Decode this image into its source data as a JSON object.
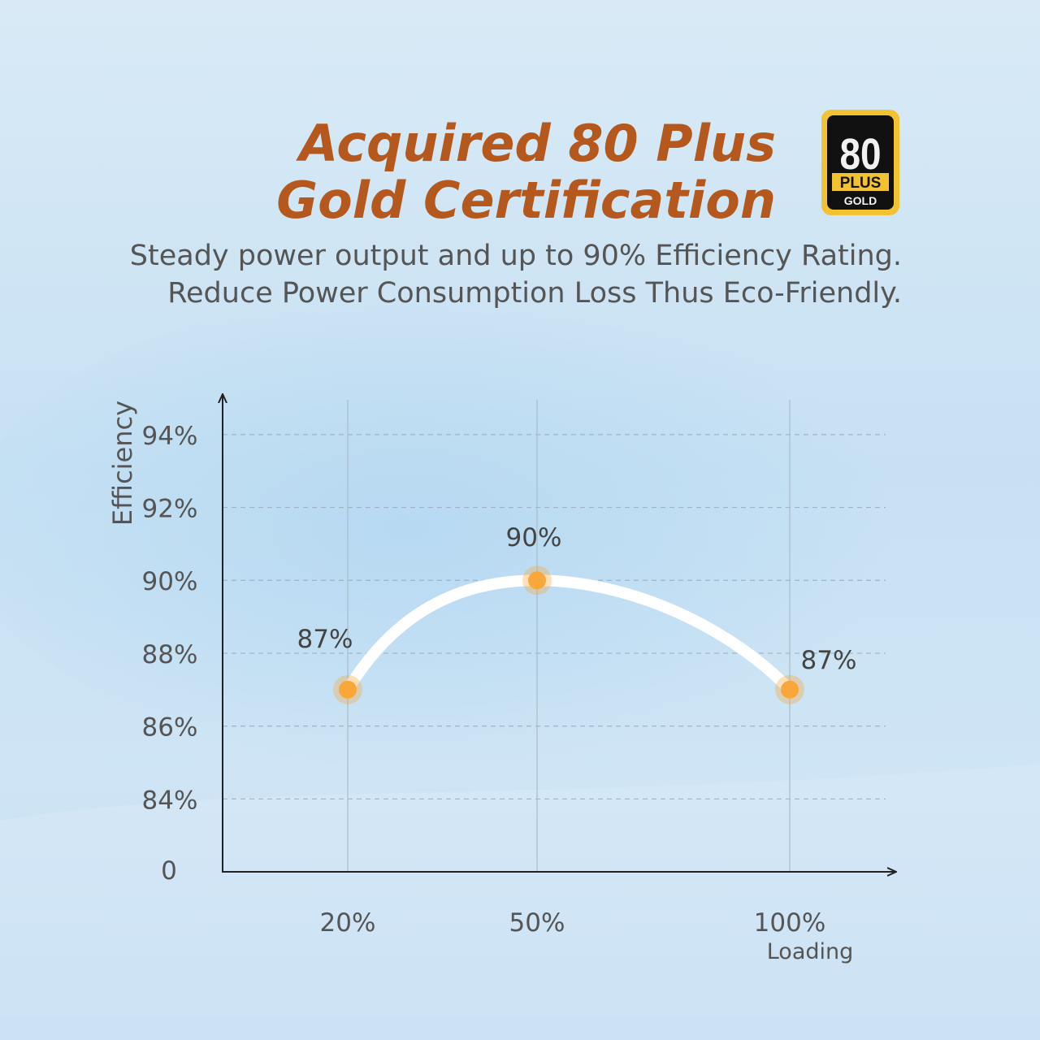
{
  "chart_data": {
    "type": "line",
    "title": [
      "Acquired 80 Plus",
      "Gold Certification"
    ],
    "subtitle": [
      "Steady power output and up to 90% Efficiency Rating.",
      "Reduce Power Consumption Loss Thus Eco-Friendly."
    ],
    "badge": {
      "number": "80",
      "word": "PLUS",
      "grade": "GOLD"
    },
    "y_label": "Efficiency",
    "x_label": "Loading",
    "origin_label": "0",
    "categories": [
      "20%",
      "50%",
      "100%"
    ],
    "values": [
      87,
      90,
      87
    ],
    "value_labels": [
      "87%",
      "90%",
      "87%"
    ],
    "color": "#f9a73a",
    "line_color": "#ffffff",
    "ylim": [
      82,
      95
    ],
    "yticks": [
      {
        "value": 84,
        "label": "84%"
      },
      {
        "value": 86,
        "label": "86%"
      },
      {
        "value": 88,
        "label": "88%"
      },
      {
        "value": 90,
        "label": "90%"
      },
      {
        "value": 92,
        "label": "92%"
      },
      {
        "value": 94,
        "label": "94%"
      }
    ],
    "grid": true
  }
}
